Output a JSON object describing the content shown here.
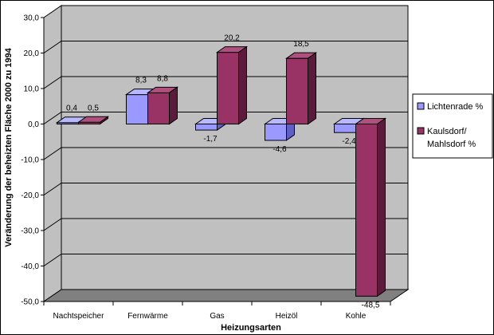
{
  "chart_data": {
    "type": "bar",
    "title": "",
    "xlabel": "Heizungsarten",
    "ylabel": "Veränderung der beheizten Fläche 2000 zu 1994",
    "ylim": [
      -50,
      30
    ],
    "ytick_step": 10,
    "ytick_labels": [
      "30,0",
      "20,0",
      "10,0",
      "0,0",
      "-10,0",
      "-20,0",
      "-30,0",
      "-40,0",
      "-50,0"
    ],
    "categories": [
      "Nachtspeicher",
      "Fernwärme",
      "Gas",
      "Heizöl",
      "Kohle"
    ],
    "series": [
      {
        "name": "Lichtenrade %",
        "values": [
          0.4,
          8.3,
          -1.7,
          -4.6,
          -2.4
        ],
        "labels": [
          "0,4",
          "8,3",
          "-1,7",
          "-4,6",
          "-2,4"
        ],
        "front": "#9999ff",
        "top": "#b8b8ff",
        "side": "#5f5fc6"
      },
      {
        "name": "Kaulsdorf/ Mahlsdorf %",
        "values": [
          0.5,
          8.8,
          20.2,
          18.5,
          -48.5
        ],
        "labels": [
          "0,5",
          "8,8",
          "20,2",
          "18,5",
          "-48,5"
        ],
        "front": "#993366",
        "top": "#b0507e",
        "side": "#5c1a3c"
      }
    ],
    "grid": true,
    "legend": "right",
    "colors": {
      "wall": "#c0c0c0",
      "floor": "#808080",
      "grid": "#000000"
    }
  }
}
